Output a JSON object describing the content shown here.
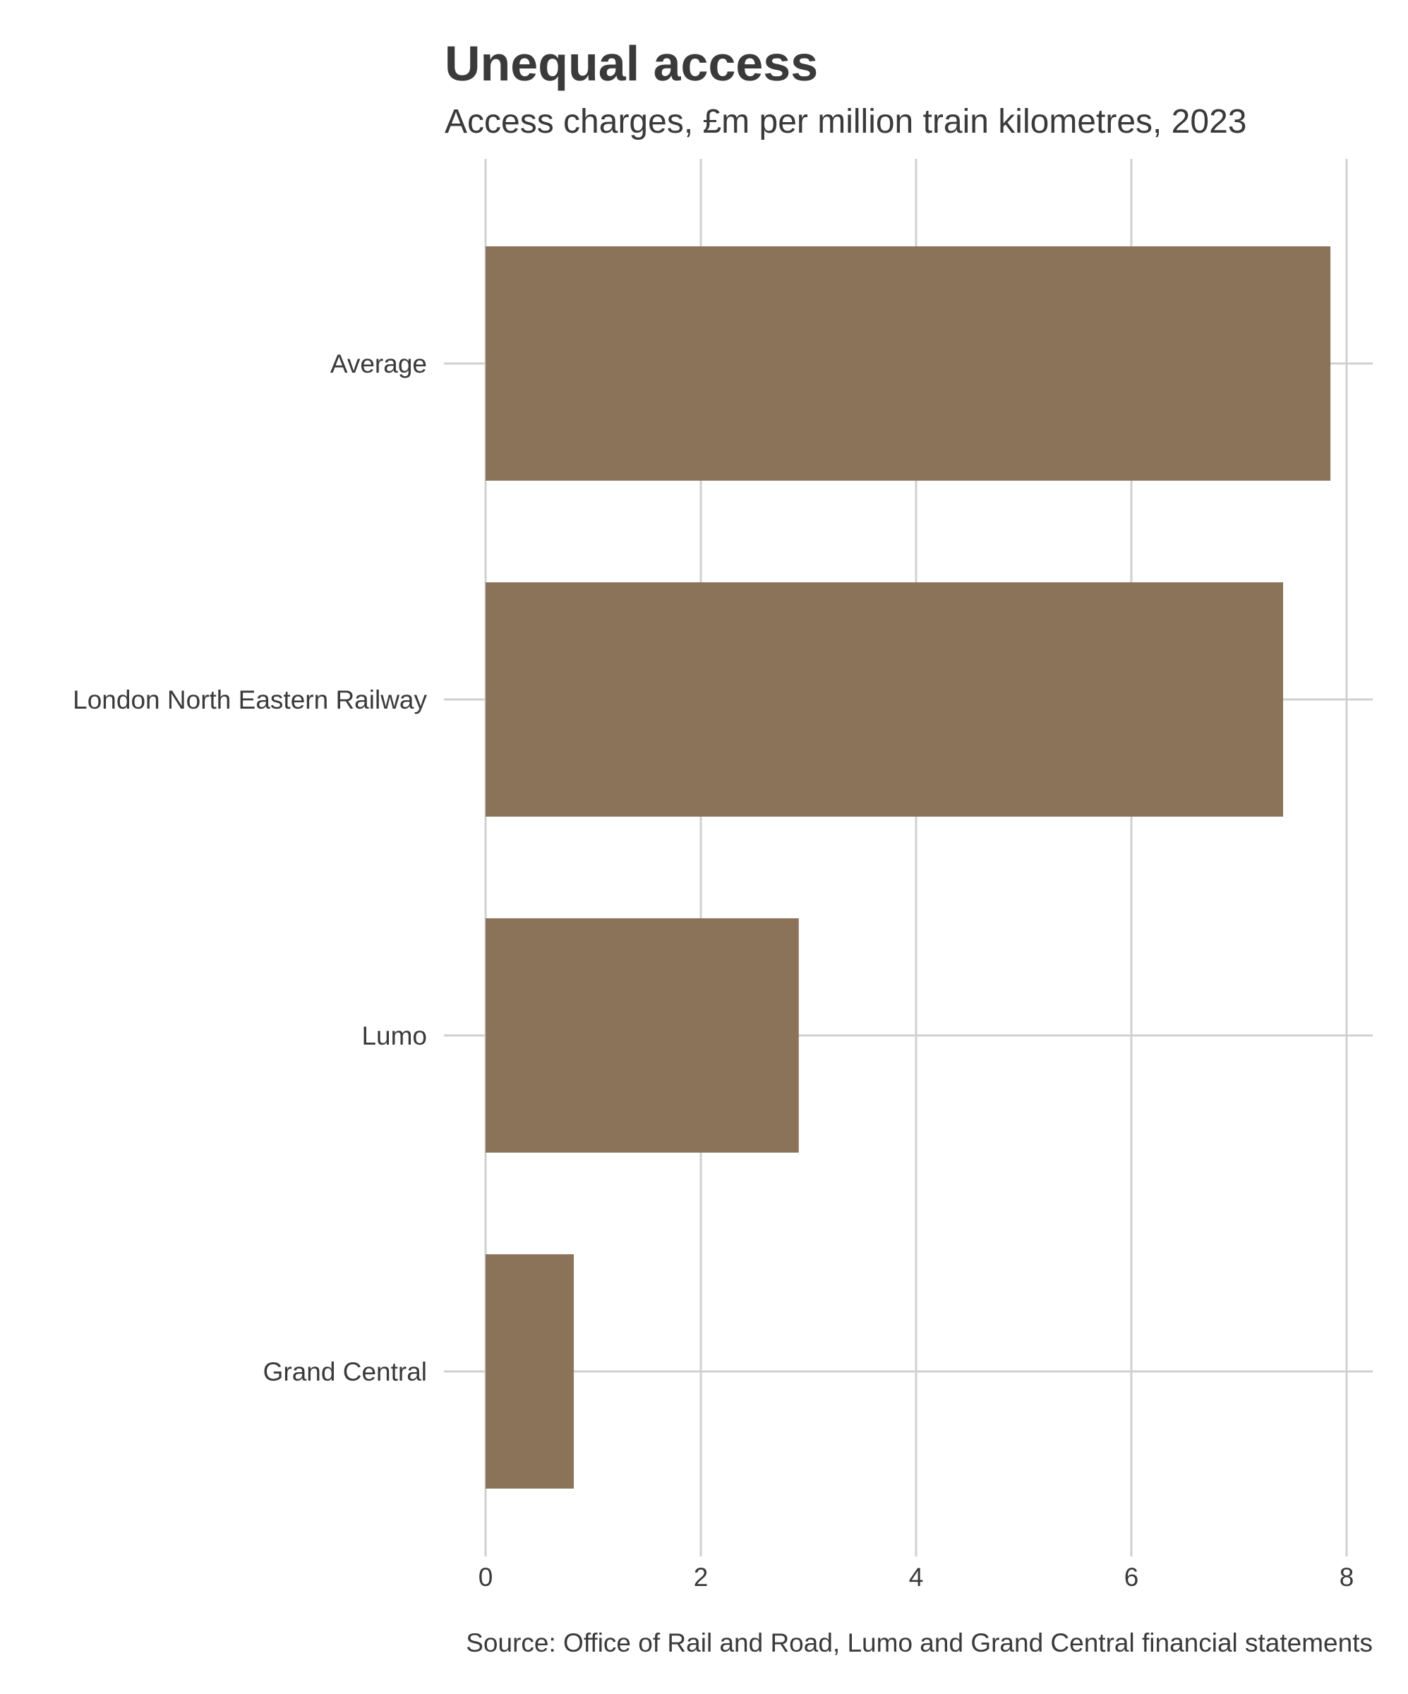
{
  "chart_data": {
    "type": "bar",
    "orientation": "horizontal",
    "title": "Unequal access",
    "subtitle": "Access charges, £m per million train kilometres, 2023",
    "source": "Source: Office of Rail and Road, Lumo and Grand Central financial statements",
    "xlabel": "",
    "ylabel": "",
    "categories": [
      "Average",
      "London North Eastern Railway",
      "Lumo",
      "Grand Central"
    ],
    "values": [
      7.85,
      7.41,
      2.91,
      0.82
    ],
    "xlim": [
      0,
      8.25
    ],
    "x_ticks": [
      0,
      2,
      4,
      6,
      8
    ],
    "grid": true,
    "bar_color": "#8B735A",
    "grid_color": "#d0d0d0"
  }
}
